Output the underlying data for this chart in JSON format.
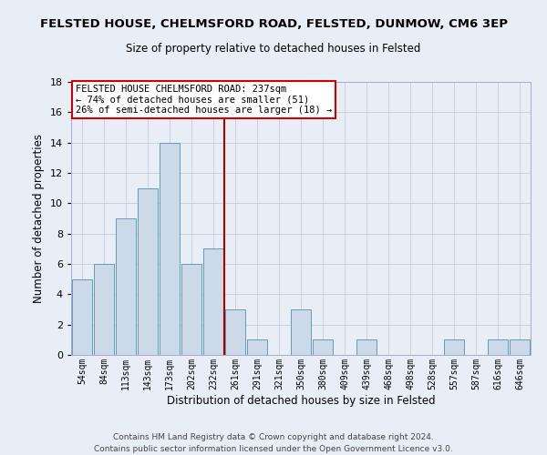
{
  "title": "FELSTED HOUSE, CHELMSFORD ROAD, FELSTED, DUNMOW, CM6 3EP",
  "subtitle": "Size of property relative to detached houses in Felsted",
  "xlabel": "Distribution of detached houses by size in Felsted",
  "ylabel": "Number of detached properties",
  "bar_color": "#ccd9e8",
  "bar_edge_color": "#6699bb",
  "categories": [
    "54sqm",
    "84sqm",
    "113sqm",
    "143sqm",
    "173sqm",
    "202sqm",
    "232sqm",
    "261sqm",
    "291sqm",
    "321sqm",
    "350sqm",
    "380sqm",
    "409sqm",
    "439sqm",
    "468sqm",
    "498sqm",
    "528sqm",
    "557sqm",
    "587sqm",
    "616sqm",
    "646sqm"
  ],
  "values": [
    5,
    6,
    9,
    11,
    14,
    6,
    7,
    3,
    1,
    0,
    3,
    1,
    0,
    1,
    0,
    0,
    0,
    1,
    0,
    1,
    1
  ],
  "ylim": [
    0,
    18
  ],
  "yticks": [
    0,
    2,
    4,
    6,
    8,
    10,
    12,
    14,
    16,
    18
  ],
  "vline_x": 6.5,
  "vline_color": "#aa0000",
  "annotation_line1": "FELSTED HOUSE CHELMSFORD ROAD: 237sqm",
  "annotation_line2": "← 74% of detached houses are smaller (51)",
  "annotation_line3": "26% of semi-detached houses are larger (18) →",
  "annotation_box_color": "#ffffff",
  "annotation_box_edge": "#cc0000",
  "footer1": "Contains HM Land Registry data © Crown copyright and database right 2024.",
  "footer2": "Contains public sector information licensed under the Open Government Licence v3.0.",
  "background_color": "#e8eef5",
  "plot_background": "#e8eef5",
  "grid_color": "#c8ccd8"
}
